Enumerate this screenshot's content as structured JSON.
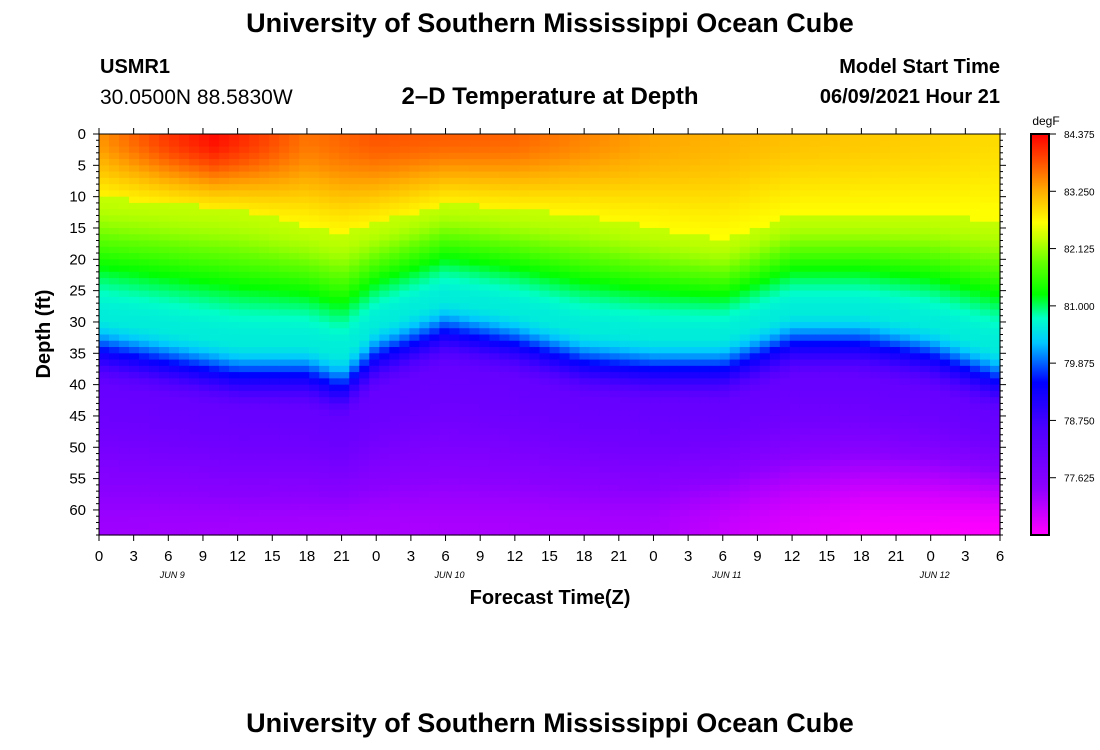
{
  "header": {
    "title": "University of Southern Mississippi Ocean Cube",
    "station_id": "USMR1",
    "station_coords": "30.0500N  88.5830W",
    "model_start_label": "Model Start Time",
    "model_start_value": "06/09/2021 Hour 21"
  },
  "footer": {
    "title": "University of Southern Mississippi Ocean Cube"
  },
  "chart_data": {
    "type": "heatmap",
    "title": "2–D Temperature at Depth",
    "xlabel": "Forecast Time(Z)",
    "ylabel": "Depth (ft)",
    "x_ticks": [
      "0",
      "3",
      "6",
      "9",
      "12",
      "15",
      "18",
      "21",
      "0",
      "3",
      "6",
      "9",
      "12",
      "15",
      "18",
      "21",
      "0",
      "3",
      "6",
      "9",
      "12",
      "15",
      "18",
      "21",
      "0",
      "3",
      "6"
    ],
    "x_hours_range": [
      0,
      78
    ],
    "date_labels": [
      {
        "label": "JUN 9",
        "hour": 6
      },
      {
        "label": "JUN 10",
        "hour": 30
      },
      {
        "label": "JUN 11",
        "hour": 54
      },
      {
        "label": "JUN 12",
        "hour": 72
      }
    ],
    "y_ticks": [
      0,
      5,
      10,
      15,
      20,
      25,
      30,
      35,
      40,
      45,
      50,
      55,
      60
    ],
    "ylim": [
      0,
      64
    ],
    "colorbar": {
      "unit": "degF",
      "labels": [
        "84.375",
        "83.250",
        "82.125",
        "81.000",
        "79.875",
        "78.750",
        "77.625"
      ],
      "range": [
        76.5,
        84.375
      ]
    },
    "thermocline_depth_ft": [
      {
        "hour": 0,
        "depth": 33
      },
      {
        "hour": 6,
        "depth": 35
      },
      {
        "hour": 12,
        "depth": 37
      },
      {
        "hour": 18,
        "depth": 37
      },
      {
        "hour": 21,
        "depth": 39
      },
      {
        "hour": 24,
        "depth": 34
      },
      {
        "hour": 30,
        "depth": 30
      },
      {
        "hour": 36,
        "depth": 32
      },
      {
        "hour": 42,
        "depth": 35
      },
      {
        "hour": 48,
        "depth": 36
      },
      {
        "hour": 54,
        "depth": 36
      },
      {
        "hour": 57,
        "depth": 34
      },
      {
        "hour": 60,
        "depth": 32
      },
      {
        "hour": 66,
        "depth": 32
      },
      {
        "hour": 72,
        "depth": 34
      },
      {
        "hour": 78,
        "depth": 38
      }
    ],
    "mixed_layer_depth_ft": [
      {
        "hour": 0,
        "depth": 10
      },
      {
        "hour": 12,
        "depth": 12
      },
      {
        "hour": 21,
        "depth": 16
      },
      {
        "hour": 30,
        "depth": 11
      },
      {
        "hour": 42,
        "depth": 13
      },
      {
        "hour": 54,
        "depth": 17
      },
      {
        "hour": 60,
        "depth": 13
      },
      {
        "hour": 72,
        "depth": 13
      },
      {
        "hour": 78,
        "depth": 14
      }
    ],
    "surface_max_temp_degF": [
      {
        "hour": 0,
        "temp": 83.4
      },
      {
        "hour": 6,
        "temp": 84.0
      },
      {
        "hour": 10,
        "temp": 84.3
      },
      {
        "hour": 18,
        "temp": 83.6
      },
      {
        "hour": 24,
        "temp": 83.8
      },
      {
        "hour": 36,
        "temp": 83.7
      },
      {
        "hour": 48,
        "temp": 83.3
      },
      {
        "hour": 60,
        "temp": 83.1
      },
      {
        "hour": 72,
        "temp": 83.0
      },
      {
        "hour": 78,
        "temp": 82.9
      }
    ],
    "bottom_temp_degF": [
      {
        "hour": 0,
        "temp": 77.3
      },
      {
        "hour": 24,
        "temp": 77.2
      },
      {
        "hour": 48,
        "temp": 77.2
      },
      {
        "hour": 56,
        "temp": 76.9
      },
      {
        "hour": 66,
        "temp": 76.6
      },
      {
        "hour": 78,
        "temp": 76.5
      }
    ]
  }
}
